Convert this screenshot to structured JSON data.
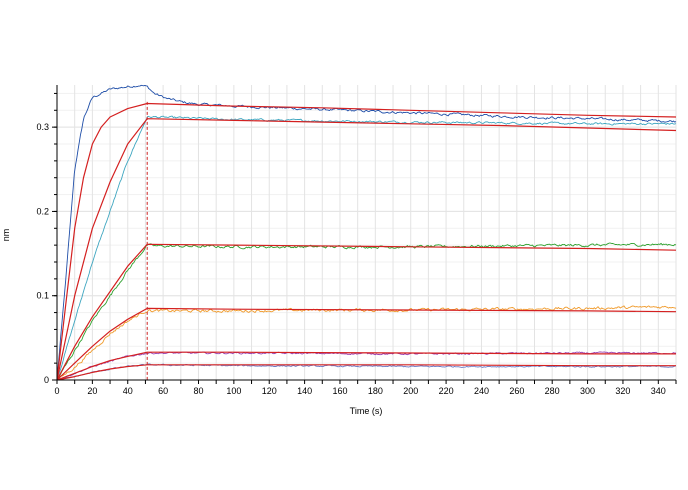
{
  "chart_data": {
    "type": "line",
    "xlabel": "Time (s)",
    "ylabel": "nm",
    "xlim": [
      0,
      350
    ],
    "ylim": [
      0,
      0.35
    ],
    "x_ticks": [
      0,
      20,
      40,
      60,
      80,
      100,
      120,
      140,
      160,
      180,
      200,
      220,
      240,
      260,
      280,
      300,
      320,
      340
    ],
    "y_ticks": [
      0,
      0.1,
      0.2,
      0.3
    ],
    "y_tick_labels": [
      "0",
      "0.1",
      "0.2",
      "0.3"
    ],
    "x_minor_step": 10,
    "y_minor_step": 0.02,
    "grid": true,
    "dissociation_start": 51,
    "colors": {
      "fit": "#d42020",
      "marker": "#cc2222",
      "grid": "#e3e3e3",
      "axis": "#000000"
    },
    "series": [
      {
        "kind": "measured",
        "color": "#1f4ea8",
        "noise": 0.0012,
        "points": [
          [
            0,
            0
          ],
          [
            5,
            0.12
          ],
          [
            10,
            0.25
          ],
          [
            15,
            0.31
          ],
          [
            20,
            0.335
          ],
          [
            25,
            0.34
          ],
          [
            30,
            0.345
          ],
          [
            40,
            0.348
          ],
          [
            47,
            0.35
          ],
          [
            51,
            0.348
          ],
          [
            55,
            0.34
          ],
          [
            62,
            0.334
          ],
          [
            70,
            0.33
          ],
          [
            80,
            0.327
          ],
          [
            100,
            0.325
          ],
          [
            150,
            0.321
          ],
          [
            200,
            0.317
          ],
          [
            250,
            0.313
          ],
          [
            300,
            0.31
          ],
          [
            350,
            0.307
          ]
        ]
      },
      {
        "kind": "measured",
        "color": "#3ea6c0",
        "noise": 0.001,
        "points": [
          [
            0,
            0
          ],
          [
            10,
            0.07
          ],
          [
            20,
            0.14
          ],
          [
            30,
            0.2
          ],
          [
            40,
            0.26
          ],
          [
            51,
            0.312
          ],
          [
            55,
            0.312
          ],
          [
            70,
            0.311
          ],
          [
            100,
            0.309
          ],
          [
            200,
            0.306
          ],
          [
            300,
            0.304
          ],
          [
            350,
            0.304
          ]
        ]
      },
      {
        "kind": "measured",
        "color": "#2ea02e",
        "noise": 0.0013,
        "points": [
          [
            0,
            0
          ],
          [
            10,
            0.035
          ],
          [
            20,
            0.07
          ],
          [
            30,
            0.1
          ],
          [
            40,
            0.13
          ],
          [
            51,
            0.16
          ],
          [
            55,
            0.159
          ],
          [
            100,
            0.158
          ],
          [
            150,
            0.158
          ],
          [
            200,
            0.158
          ],
          [
            250,
            0.159
          ],
          [
            300,
            0.16
          ],
          [
            350,
            0.161
          ]
        ]
      },
      {
        "kind": "measured",
        "color": "#f09a2a",
        "noise": 0.0014,
        "points": [
          [
            0,
            0
          ],
          [
            10,
            0.015
          ],
          [
            20,
            0.035
          ],
          [
            30,
            0.055
          ],
          [
            40,
            0.07
          ],
          [
            51,
            0.083
          ],
          [
            55,
            0.082
          ],
          [
            100,
            0.082
          ],
          [
            150,
            0.083
          ],
          [
            200,
            0.083
          ],
          [
            250,
            0.084
          ],
          [
            300,
            0.085
          ],
          [
            350,
            0.087
          ]
        ]
      },
      {
        "kind": "measured",
        "color": "#9a3fb0",
        "noise": 0.0008,
        "points": [
          [
            0,
            0
          ],
          [
            10,
            0.008
          ],
          [
            20,
            0.016
          ],
          [
            30,
            0.022
          ],
          [
            40,
            0.028
          ],
          [
            51,
            0.032
          ],
          [
            100,
            0.032
          ],
          [
            200,
            0.031
          ],
          [
            300,
            0.032
          ],
          [
            350,
            0.032
          ]
        ]
      },
      {
        "kind": "measured",
        "color": "#6a7cc8",
        "noise": 0.0007,
        "points": [
          [
            0,
            0
          ],
          [
            10,
            0.004
          ],
          [
            20,
            0.009
          ],
          [
            30,
            0.013
          ],
          [
            40,
            0.016
          ],
          [
            51,
            0.018
          ],
          [
            100,
            0.017
          ],
          [
            200,
            0.016
          ],
          [
            300,
            0.016
          ],
          [
            350,
            0.016
          ]
        ]
      },
      {
        "kind": "fit",
        "color": "#d42020",
        "points": [
          [
            0,
            0
          ],
          [
            5,
            0.09
          ],
          [
            10,
            0.18
          ],
          [
            15,
            0.24
          ],
          [
            20,
            0.28
          ],
          [
            25,
            0.3
          ],
          [
            30,
            0.312
          ],
          [
            40,
            0.322
          ],
          [
            51,
            0.328
          ],
          [
            100,
            0.325
          ],
          [
            150,
            0.323
          ],
          [
            200,
            0.32
          ],
          [
            250,
            0.317
          ],
          [
            300,
            0.314
          ],
          [
            350,
            0.312
          ]
        ]
      },
      {
        "kind": "fit",
        "color": "#d42020",
        "points": [
          [
            0,
            0
          ],
          [
            10,
            0.1
          ],
          [
            20,
            0.18
          ],
          [
            30,
            0.235
          ],
          [
            40,
            0.28
          ],
          [
            51,
            0.31
          ],
          [
            100,
            0.308
          ],
          [
            150,
            0.306
          ],
          [
            200,
            0.304
          ],
          [
            250,
            0.302
          ],
          [
            300,
            0.299
          ],
          [
            350,
            0.296
          ]
        ]
      },
      {
        "kind": "fit",
        "color": "#d42020",
        "points": [
          [
            0,
            0
          ],
          [
            10,
            0.04
          ],
          [
            20,
            0.075
          ],
          [
            30,
            0.105
          ],
          [
            40,
            0.135
          ],
          [
            51,
            0.161
          ],
          [
            100,
            0.16
          ],
          [
            200,
            0.158
          ],
          [
            300,
            0.156
          ],
          [
            350,
            0.154
          ]
        ]
      },
      {
        "kind": "fit",
        "color": "#d42020",
        "points": [
          [
            0,
            0
          ],
          [
            10,
            0.02
          ],
          [
            20,
            0.04
          ],
          [
            30,
            0.058
          ],
          [
            40,
            0.072
          ],
          [
            51,
            0.085
          ],
          [
            100,
            0.084
          ],
          [
            200,
            0.083
          ],
          [
            300,
            0.082
          ],
          [
            350,
            0.081
          ]
        ]
      },
      {
        "kind": "fit",
        "color": "#d42020",
        "points": [
          [
            0,
            0
          ],
          [
            10,
            0.008
          ],
          [
            20,
            0.016
          ],
          [
            30,
            0.023
          ],
          [
            40,
            0.028
          ],
          [
            51,
            0.033
          ],
          [
            100,
            0.033
          ],
          [
            200,
            0.032
          ],
          [
            300,
            0.031
          ],
          [
            350,
            0.031
          ]
        ]
      },
      {
        "kind": "fit",
        "color": "#d42020",
        "points": [
          [
            0,
            0
          ],
          [
            10,
            0.004
          ],
          [
            20,
            0.009
          ],
          [
            30,
            0.013
          ],
          [
            40,
            0.016
          ],
          [
            51,
            0.018
          ],
          [
            100,
            0.018
          ],
          [
            200,
            0.018
          ],
          [
            300,
            0.017
          ],
          [
            350,
            0.017
          ]
        ]
      }
    ]
  }
}
